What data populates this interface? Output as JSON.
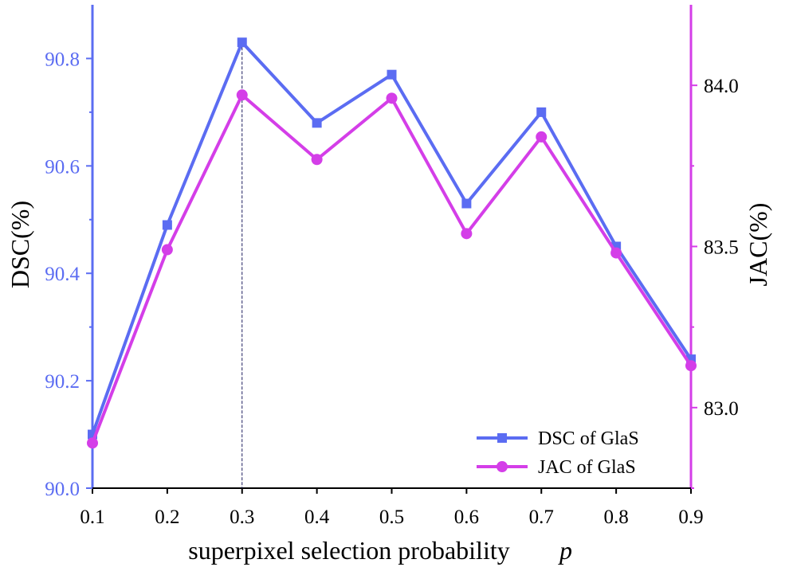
{
  "chart_data": {
    "type": "line",
    "title": "",
    "xlabel": "superpixel selection probability",
    "xlabel_var": "p",
    "ylabel": "DSC(%)",
    "y2label": "JAC(%)",
    "x": [
      0.1,
      0.2,
      0.3,
      0.4,
      0.5,
      0.6,
      0.7,
      0.8,
      0.9
    ],
    "x_tick_labels": [
      "0.1",
      "0.2",
      "0.3",
      "0.4",
      "0.5",
      "0.6",
      "0.7",
      "0.8",
      "0.9"
    ],
    "xlim": [
      0.1,
      0.9
    ],
    "ylim": [
      90.0,
      90.9
    ],
    "y_ticks": [
      90.0,
      90.2,
      90.4,
      90.6,
      90.8
    ],
    "y_tick_labels": [
      "90.0",
      "90.2",
      "90.4",
      "90.6",
      "90.8"
    ],
    "y2lim": [
      82.75,
      84.25
    ],
    "y2_ticks": [
      83.0,
      83.5,
      84.0
    ],
    "y2_tick_labels": [
      "83.0",
      "83.5",
      "84.0"
    ],
    "reference_line_x": 0.3,
    "legend_position": "bottom-right",
    "series": [
      {
        "name": "DSC of GlaS",
        "axis": "left",
        "marker": "square",
        "color": "#5b6cf2",
        "values": [
          90.1,
          90.49,
          90.83,
          90.68,
          90.77,
          90.53,
          90.7,
          90.45,
          90.24
        ]
      },
      {
        "name": "JAC of GlaS",
        "axis": "right",
        "marker": "circle",
        "color": "#d43ee8",
        "values": [
          82.89,
          83.49,
          83.97,
          83.77,
          83.96,
          83.54,
          83.84,
          83.48,
          83.13
        ]
      }
    ],
    "left_axis_color": "#5b6cf2",
    "right_axis_color": "#d43ee8"
  }
}
